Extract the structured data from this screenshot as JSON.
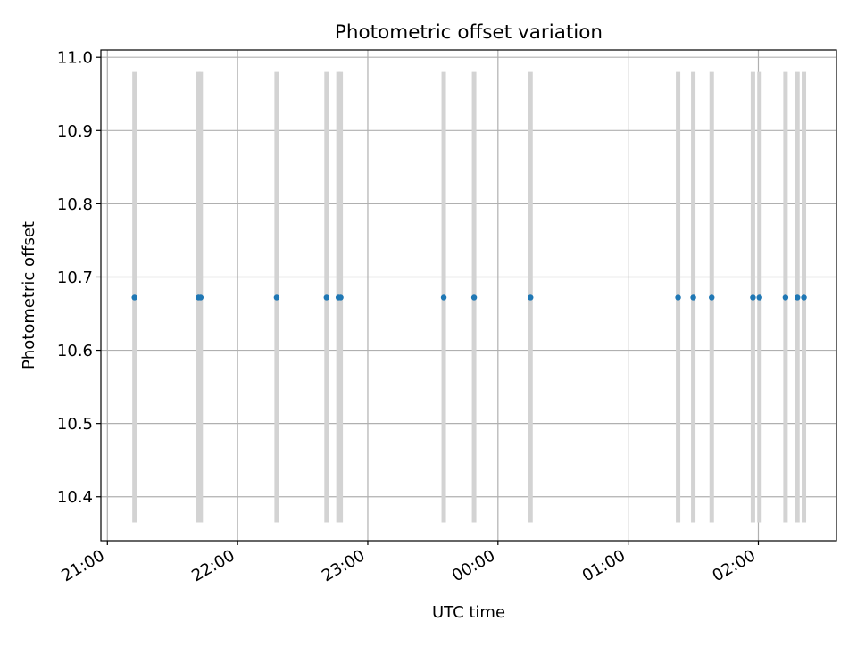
{
  "chart_data": {
    "type": "scatter",
    "title": "Photometric offset variation",
    "xlabel": "UTC time",
    "ylabel": "Photometric offset",
    "grid": true,
    "legend": false,
    "xlim": [
      "20:57",
      "02:36"
    ],
    "ylim": [
      10.34,
      11.01
    ],
    "xticks": [
      "21:00",
      "22:00",
      "23:00",
      "00:00",
      "01:00",
      "02:00"
    ],
    "yticks": [
      "10.4",
      "10.5",
      "10.6",
      "10.7",
      "10.8",
      "10.9",
      "11.0"
    ],
    "vertical_bands": {
      "y_range": [
        10.365,
        10.98
      ],
      "x": [
        "21:12.5",
        "21:42",
        "21:43",
        "22:18",
        "22:41",
        "22:46.5",
        "22:47.5",
        "23:35",
        "23:49",
        "00:15",
        "01:23",
        "01:30",
        "01:38.5",
        "01:57.5",
        "02:00.5",
        "02:12.5",
        "02:18",
        "02:21"
      ]
    },
    "series": [
      {
        "x": [
          "21:12.5",
          "21:42",
          "21:43",
          "22:18",
          "22:41",
          "22:46.5",
          "22:47.5",
          "23:35",
          "23:49",
          "00:15",
          "01:23",
          "01:30",
          "01:38.5",
          "01:57.5",
          "02:00.5",
          "02:12.5",
          "02:18",
          "02:21"
        ],
        "y": [
          10.672,
          10.672,
          10.672,
          10.672,
          10.672,
          10.672,
          10.672,
          10.672,
          10.672,
          10.672,
          10.672,
          10.672,
          10.672,
          10.672,
          10.672,
          10.672,
          10.672,
          10.672
        ]
      }
    ]
  },
  "colors": {
    "points": "#1f77b4",
    "bands": "#d3d3d3",
    "grid": "#b0b0b0",
    "axes": "#000000"
  }
}
